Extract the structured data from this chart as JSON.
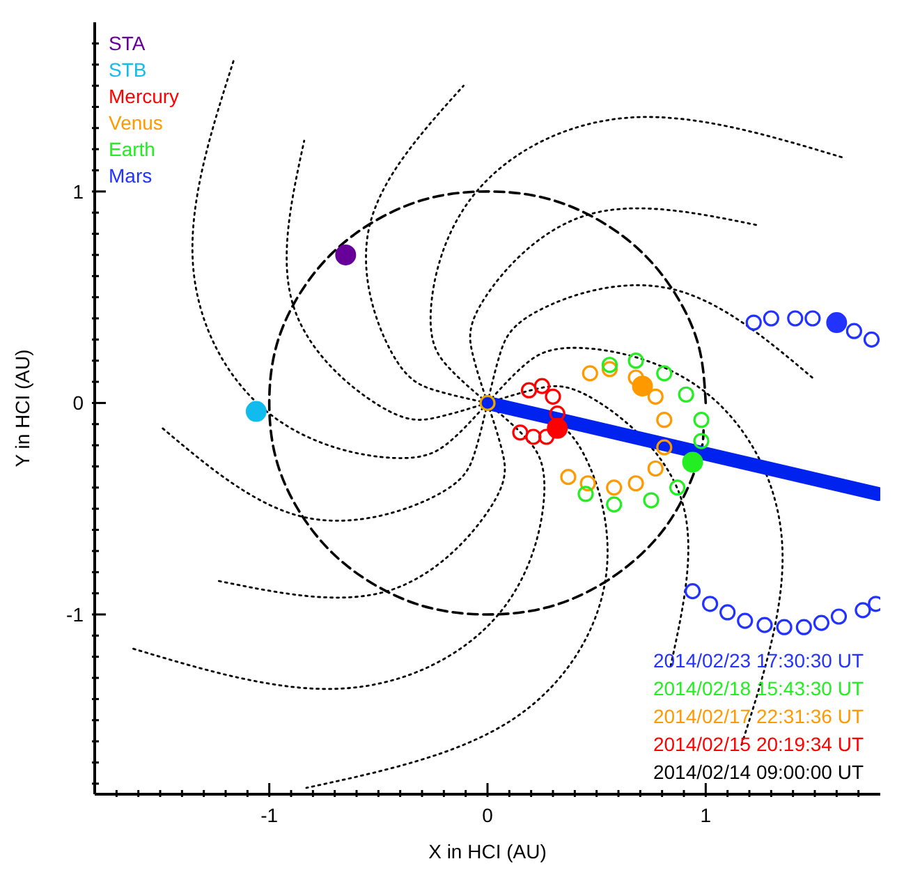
{
  "chart_data": {
    "type": "scatter",
    "xlabel": "X in HCI (AU)",
    "ylabel": "Y in HCI (AU)",
    "xlim": [
      -1.8,
      1.8
    ],
    "ylim": [
      -1.85,
      1.8
    ],
    "xticks": [
      {
        "value": -1.7,
        "label": null
      },
      {
        "value": -1.6,
        "label": null
      },
      {
        "value": -1.5,
        "label": null
      },
      {
        "value": -1.4,
        "label": null
      },
      {
        "value": -1.3,
        "label": null
      },
      {
        "value": -1.2,
        "label": null
      },
      {
        "value": -1.1,
        "label": null
      },
      -1,
      {
        "value": -0.9,
        "label": null
      },
      {
        "value": -0.8,
        "label": null
      },
      {
        "value": -0.7,
        "label": null
      },
      {
        "value": -0.6,
        "label": null
      },
      {
        "value": -0.5,
        "label": null
      },
      {
        "value": -0.4,
        "label": null
      },
      {
        "value": -0.3,
        "label": null
      },
      {
        "value": -0.2,
        "label": null
      },
      {
        "value": -0.1,
        "label": null
      },
      0,
      {
        "value": 0.1,
        "label": null
      },
      {
        "value": 0.2,
        "label": null
      },
      {
        "value": 0.3,
        "label": null
      },
      {
        "value": 0.4,
        "label": null
      },
      {
        "value": 0.5,
        "label": null
      },
      {
        "value": 0.6,
        "label": null
      },
      {
        "value": 0.7,
        "label": null
      },
      {
        "value": 0.8,
        "label": null
      },
      {
        "value": 0.9,
        "label": null
      },
      1,
      {
        "value": 1.1,
        "label": null
      },
      {
        "value": 1.2,
        "label": null
      },
      {
        "value": 1.3,
        "label": null
      },
      {
        "value": 1.4,
        "label": null
      },
      {
        "value": 1.5,
        "label": null
      },
      {
        "value": 1.6,
        "label": null
      },
      {
        "value": 1.7,
        "label": null
      }
    ],
    "yticks": [
      {
        "value": -1.8,
        "label": null
      },
      {
        "value": -1.7,
        "label": null
      },
      {
        "value": -1.6,
        "label": null
      },
      {
        "value": -1.5,
        "label": null
      },
      {
        "value": -1.4,
        "label": null
      },
      {
        "value": -1.3,
        "label": null
      },
      {
        "value": -1.2,
        "label": null
      },
      {
        "value": -1.1,
        "label": null
      },
      -1,
      {
        "value": -0.9,
        "label": null
      },
      {
        "value": -0.8,
        "label": null
      },
      {
        "value": -0.7,
        "label": null
      },
      {
        "value": -0.6,
        "label": null
      },
      {
        "value": -0.5,
        "label": null
      },
      {
        "value": -0.4,
        "label": null
      },
      {
        "value": -0.3,
        "label": null
      },
      {
        "value": -0.2,
        "label": null
      },
      {
        "value": -0.1,
        "label": null
      },
      0,
      {
        "value": 0.1,
        "label": null
      },
      {
        "value": 0.2,
        "label": null
      },
      {
        "value": 0.3,
        "label": null
      },
      {
        "value": 0.4,
        "label": null
      },
      {
        "value": 0.5,
        "label": null
      },
      {
        "value": 0.6,
        "label": null
      },
      {
        "value": 0.7,
        "label": null
      },
      {
        "value": 0.8,
        "label": null
      },
      {
        "value": 0.9,
        "label": null
      },
      1,
      {
        "value": 1.1,
        "label": null
      },
      {
        "value": 1.2,
        "label": null
      },
      {
        "value": 1.3,
        "label": null
      },
      {
        "value": 1.4,
        "label": null
      },
      {
        "value": 1.5,
        "label": null
      },
      {
        "value": 1.6,
        "label": null
      },
      {
        "value": 1.7,
        "label": null
      }
    ],
    "grid": false,
    "legend": "top left",
    "marker": "circle",
    "series": [
      {
        "type": "line",
        "marker": "none",
        "line_style": "dotted",
        "color": "#000000",
        "x": [
          0,
          0.24,
          0.44,
          0.54,
          0.11,
          -0.83
        ],
        "values": [
          0,
          -0.06,
          -0.24,
          -0.84,
          -1.5,
          -1.82
        ]
      },
      {
        "type": "line",
        "marker": "none",
        "line_style": "dotted",
        "color": "#000000",
        "x": [
          0,
          0.24,
          0.5,
          0.89,
          0.84
        ],
        "values": [
          0,
          0.07,
          0.01,
          -0.46,
          -1.24
        ]
      },
      {
        "type": "line",
        "marker": "none",
        "line_style": "dotted",
        "color": "#000000",
        "x": [
          0,
          0.17,
          0.43,
          1.0,
          1.35,
          1.16
        ],
        "values": [
          0,
          0.18,
          0.26,
          0.05,
          -0.66,
          -1.63
        ]
      },
      {
        "type": "line",
        "marker": "none",
        "line_style": "dotted",
        "color": "#000000",
        "x": [
          0,
          0.06,
          0.24,
          0.84,
          1.5
        ],
        "values": [
          0,
          0.24,
          0.44,
          0.54,
          0.11
        ]
      },
      {
        "type": "line",
        "marker": "none",
        "line_style": "dotted",
        "color": "#000000",
        "x": [
          0,
          -0.07,
          -0.01,
          0.46,
          1.24
        ],
        "values": [
          0,
          0.24,
          0.5,
          0.89,
          0.84
        ]
      },
      {
        "type": "line",
        "marker": "none",
        "line_style": "dotted",
        "color": "#000000",
        "x": [
          0,
          -0.18,
          -0.26,
          -0.05,
          0.66,
          1.63
        ],
        "values": [
          0,
          0.17,
          0.43,
          1.0,
          1.35,
          1.16
        ]
      },
      {
        "type": "line",
        "marker": "none",
        "line_style": "dotted",
        "color": "#000000",
        "x": [
          0,
          -0.24,
          -0.44,
          -0.54,
          -0.11
        ],
        "values": [
          0,
          0.06,
          0.24,
          0.84,
          1.5
        ]
      },
      {
        "type": "line",
        "marker": "none",
        "line_style": "dotted",
        "color": "#000000",
        "x": [
          0,
          -0.24,
          -0.5,
          -0.89,
          -0.84
        ],
        "values": [
          0,
          -0.07,
          -0.01,
          0.46,
          1.24
        ]
      },
      {
        "type": "line",
        "marker": "none",
        "line_style": "dotted",
        "color": "#000000",
        "x": [
          0,
          -0.17,
          -0.43,
          -1.0,
          -1.35,
          -1.16
        ],
        "values": [
          0,
          -0.18,
          -0.26,
          -0.05,
          0.66,
          1.63
        ]
      },
      {
        "type": "line",
        "marker": "none",
        "line_style": "dotted",
        "color": "#000000",
        "x": [
          0,
          -0.06,
          -0.24,
          -0.84,
          -1.5
        ],
        "values": [
          0,
          -0.24,
          -0.44,
          -0.54,
          -0.11
        ]
      },
      {
        "type": "line",
        "marker": "none",
        "line_style": "dotted",
        "color": "#000000",
        "x": [
          0,
          0.07,
          0.01,
          -0.46,
          -1.24
        ],
        "values": [
          0,
          -0.24,
          -0.5,
          -0.89,
          -0.84
        ]
      },
      {
        "type": "line",
        "marker": "none",
        "line_style": "dotted",
        "color": "#000000",
        "x": [
          0,
          0.18,
          0.26,
          0.05,
          -0.66,
          -1.63
        ],
        "values": [
          0,
          -0.17,
          -0.43,
          -1.0,
          -1.35,
          -1.16
        ]
      },
      {
        "type": "line",
        "marker": "none",
        "line_style": "dashed",
        "color": "#000000",
        "x": [
          1,
          0.97,
          0.87,
          0.71,
          0.5,
          0.26,
          0,
          -0.26,
          -0.5,
          -0.71,
          -0.87,
          -0.97,
          -1,
          -0.97,
          -0.87,
          -0.71,
          -0.5,
          -0.26,
          0,
          0.26,
          0.5,
          0.71,
          0.87,
          0.97,
          0.99
        ],
        "values": [
          0,
          0.26,
          0.5,
          0.71,
          0.87,
          0.97,
          1,
          0.97,
          0.87,
          0.71,
          0.5,
          0.26,
          0,
          -0.26,
          -0.5,
          -0.71,
          -0.87,
          -0.97,
          -1,
          -0.97,
          -0.87,
          -0.71,
          -0.5,
          -0.26,
          -0.13
        ]
      },
      {
        "color": "#e8a800",
        "x": [
          0
        ],
        "values": [
          0
        ]
      },
      {
        "type": "line",
        "marker": "none",
        "line_style": "solid",
        "color": "#0022ee",
        "x": [
          0,
          1.79
        ],
        "values": [
          0,
          -0.43
        ]
      },
      {
        "color": "#ff0000",
        "x": [
          0.19,
          0.25,
          0.3,
          0.32,
          0.27,
          0.21,
          0.15
        ],
        "values": [
          0.06,
          0.08,
          0.03,
          -0.05,
          -0.16,
          -0.16,
          -0.14
        ]
      },
      {
        "color": "#ff9900",
        "x": [
          0.47,
          0.56,
          0.68,
          0.77,
          0.81,
          0.81,
          0.77,
          0.68,
          0.58,
          0.46,
          0.37
        ],
        "values": [
          0.14,
          0.16,
          0.12,
          0.03,
          -0.08,
          -0.21,
          -0.31,
          -0.38,
          -0.4,
          -0.38,
          -0.35
        ]
      },
      {
        "color": "#22ee22",
        "x": [
          0.56,
          0.68,
          0.81,
          0.91,
          0.98,
          0.98,
          0.93,
          0.87,
          0.75,
          0.58,
          0.45
        ],
        "values": [
          0.18,
          0.2,
          0.14,
          0.04,
          -0.08,
          -0.18,
          null,
          -0.4,
          -0.46,
          -0.48,
          -0.43
        ]
      },
      {
        "color": "#2233ff",
        "x": [
          1.22,
          1.3,
          1.41,
          1.49,
          1.68,
          1.76
        ],
        "values": [
          0.38,
          0.4,
          0.4,
          0.4,
          0.34,
          0.3
        ]
      },
      {
        "color": "#2233ff",
        "x": [
          0.94,
          1.02,
          1.1,
          1.18,
          1.27,
          1.36,
          1.45,
          1.53,
          1.61,
          1.72,
          1.78
        ],
        "values": [
          -0.89,
          -0.95,
          -0.99,
          -1.03,
          -1.05,
          -1.06,
          -1.06,
          -1.04,
          -1.01,
          -0.98,
          -0.95
        ]
      },
      {
        "name": "STA",
        "color": "#660099",
        "x": [
          -0.65
        ],
        "values": [
          0.7
        ]
      },
      {
        "name": "STB",
        "color": "#11bbee",
        "x": [
          -1.06
        ],
        "values": [
          -0.04
        ]
      },
      {
        "name": "Mercury",
        "color": "#ff0000",
        "x": [
          0.32
        ],
        "values": [
          -0.12
        ]
      },
      {
        "name": "Venus",
        "color": "#ff9900",
        "x": [
          0.71
        ],
        "values": [
          0.08
        ]
      },
      {
        "name": "Earth",
        "color": "#22ee22",
        "x": [
          0.94
        ],
        "values": [
          -0.28
        ]
      },
      {
        "name": "Mars",
        "color": "#2233ff",
        "x": [
          1.6
        ],
        "values": [
          0.38
        ]
      }
    ],
    "annotations": [
      "2014/02/23 17:30:30 UT",
      "2014/02/18 15:43:30 UT",
      "2014/02/17 22:31:36 UT",
      "2014/02/15 20:19:34 UT",
      "2014/02/14 09:00:00 UT"
    ]
  }
}
